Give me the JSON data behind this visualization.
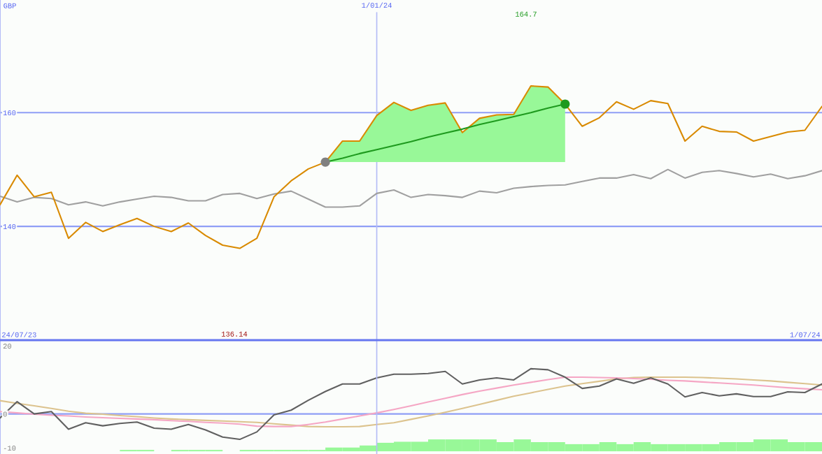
{
  "chart_data": [
    {
      "type": "line",
      "ylabel": "GBP",
      "categories": [
        null,
        null,
        null,
        null,
        null,
        null,
        null,
        null,
        null,
        null,
        null,
        null,
        null,
        null,
        null,
        null,
        null,
        null,
        null,
        null,
        null,
        null,
        "1/01/24",
        null,
        null,
        null,
        null,
        null,
        null,
        null,
        null,
        null,
        null,
        null,
        null,
        null,
        null,
        null,
        null,
        null,
        null,
        null,
        null,
        null,
        null,
        null,
        null,
        null,
        null
      ],
      "ylim": [
        120,
        179.8
      ],
      "yticks": [
        140,
        160
      ],
      "grid": "y",
      "ref_lines": [
        {
          "axis": "x",
          "value": "1/01/24",
          "color": "#b4bcf6"
        }
      ],
      "annotations": [
        "24/07/23",
        "1/07/24",
        "164.7",
        "136.14"
      ],
      "series": [
        {
          "color": "#a0a0a0",
          "values": [
            145.3,
            144.3,
            145.1,
            144.9,
            143.8,
            144.3,
            143.6,
            144.3,
            144.8,
            145.3,
            145.1,
            144.5,
            144.5,
            145.6,
            145.8,
            144.9,
            145.7,
            146.2,
            144.8,
            143.4,
            143.4,
            143.6,
            145.8,
            146.4,
            145.1,
            145.6,
            145.4,
            145.1,
            146.2,
            145.9,
            146.7,
            147.0,
            147.2,
            147.3,
            147.9,
            148.5,
            148.5,
            149.1,
            148.4,
            150.0,
            148.5,
            149.5,
            149.8,
            149.3,
            148.7,
            149.2,
            148.4,
            148.9,
            149.8
          ]
        },
        {
          "color": "#d98a00",
          "values": [
            143.8,
            149.0,
            145.2,
            146.0,
            137.9,
            140.7,
            139.1,
            140.3,
            141.4,
            140.0,
            139.1,
            140.6,
            138.4,
            136.7,
            136.14,
            137.9,
            145.2,
            148.0,
            150.1,
            151.3,
            155.0,
            155.0,
            159.5,
            161.8,
            160.4,
            161.3,
            161.7,
            156.5,
            159.0,
            159.6,
            159.7,
            164.7,
            164.5,
            161.5,
            157.6,
            159.1,
            161.9,
            160.6,
            162.1,
            161.6,
            155.0,
            157.6,
            156.7,
            156.6,
            155.0,
            155.8,
            156.6,
            156.9,
            161.1
          ]
        },
        {
          "type": "line",
          "color": "#1e9a1e",
          "values": [
            null,
            null,
            null,
            null,
            null,
            null,
            null,
            null,
            null,
            null,
            null,
            null,
            null,
            null,
            null,
            null,
            null,
            null,
            null,
            151.3,
            152.0,
            152.8,
            153.5,
            154.2,
            154.9,
            155.7,
            156.4,
            157.1,
            157.9,
            158.6,
            159.3,
            160.0,
            160.8,
            161.5,
            null,
            null,
            null,
            null,
            null,
            null,
            null,
            null,
            null,
            null,
            null,
            null,
            null,
            null,
            null
          ],
          "lower": [
            null,
            null,
            null,
            null,
            null,
            null,
            null,
            null,
            null,
            null,
            null,
            null,
            null,
            null,
            null,
            null,
            null,
            null,
            null,
            151.3,
            151.3,
            151.3,
            151.3,
            151.3,
            151.3,
            151.3,
            151.3,
            151.3,
            151.3,
            151.3,
            151.3,
            151.3,
            151.3,
            151.3,
            null,
            null,
            null,
            null,
            null,
            null,
            null,
            null,
            null,
            null,
            null,
            null,
            null,
            null,
            null
          ],
          "upper": [
            null,
            null,
            null,
            null,
            null,
            null,
            null,
            null,
            null,
            null,
            null,
            null,
            null,
            null,
            null,
            null,
            null,
            null,
            null,
            151.3,
            155.0,
            155.0,
            159.5,
            161.8,
            160.4,
            161.3,
            161.7,
            156.5,
            159.0,
            159.6,
            159.7,
            164.7,
            164.5,
            161.5,
            null,
            null,
            null,
            null,
            null,
            null,
            null,
            null,
            null,
            null,
            null,
            null,
            null,
            null,
            null
          ]
        },
        {
          "type": "scatter",
          "values": [
            null,
            null,
            null,
            null,
            null,
            null,
            null,
            null,
            null,
            null,
            null,
            null,
            null,
            null,
            null,
            null,
            null,
            null,
            null,
            151.3,
            null,
            null,
            null,
            null,
            null,
            null,
            null,
            null,
            null,
            null,
            null,
            null,
            null,
            161.5,
            null,
            null,
            null,
            null,
            null,
            null,
            null,
            null,
            null,
            null,
            null,
            null,
            null,
            null,
            null
          ],
          "colors": [
            null,
            null,
            null,
            null,
            null,
            null,
            null,
            null,
            null,
            null,
            null,
            null,
            null,
            null,
            null,
            null,
            null,
            null,
            null,
            "#808080",
            null,
            null,
            null,
            null,
            null,
            null,
            null,
            null,
            null,
            null,
            null,
            null,
            null,
            "#1e9a1e",
            null,
            null,
            null,
            null,
            null,
            null,
            null,
            null,
            null,
            null,
            null,
            null,
            null,
            null,
            null
          ]
        }
      ]
    },
    {
      "type": "line",
      "categories": [
        null,
        null,
        null,
        null,
        null,
        null,
        null,
        null,
        null,
        null,
        null,
        null,
        null,
        null,
        null,
        null,
        null,
        null,
        null,
        null,
        null,
        null,
        null,
        null,
        null,
        null,
        null,
        null,
        null,
        null,
        null,
        null,
        null,
        null,
        null,
        null,
        null,
        null,
        null,
        null,
        null,
        null,
        null,
        null,
        null,
        null,
        null,
        null,
        null
      ],
      "ylim": [
        -11.8,
        21.5
      ],
      "yticks": [
        20,
        0,
        -10
      ],
      "ref_lines": [
        {
          "axis": "y",
          "value": 0,
          "color": "#8f9ef6"
        }
      ],
      "series": [
        {
          "type": "bar",
          "color": "#98f898",
          "values": [
            null,
            null,
            null,
            null,
            null,
            null,
            null,
            0.4,
            0.4,
            null,
            0.4,
            0.4,
            0.4,
            null,
            0.4,
            0.4,
            0.4,
            0.4,
            0.4,
            1.1,
            1.1,
            1.7,
            2.5,
            2.8,
            2.8,
            3.5,
            3.5,
            3.5,
            3.5,
            2.7,
            3.5,
            2.7,
            2.7,
            2.1,
            2.1,
            2.7,
            2.1,
            2.7,
            2.1,
            2.1,
            2.1,
            2.1,
            2.7,
            2.7,
            3.5,
            3.5,
            2.7,
            2.7,
            null
          ],
          "base": [
            null,
            null,
            null,
            null,
            null,
            null,
            null,
            -11.0,
            -11.0,
            null,
            -11.0,
            -11.0,
            -11.0,
            null,
            -11.0,
            -11.0,
            -11.0,
            -11.0,
            -11.0,
            -11.0,
            -11.0,
            -11.0,
            -11.0,
            -11.0,
            -11.0,
            -11.0,
            -11.0,
            -11.0,
            -11.0,
            -11.0,
            -11.0,
            -11.0,
            -11.0,
            -11.0,
            -11.0,
            -11.0,
            -11.0,
            -11.0,
            -11.0,
            -11.0,
            -11.0,
            -11.0,
            -11.0,
            -11.0,
            -11.0,
            -11.0,
            -11.0,
            -11.0,
            null
          ]
        },
        {
          "color": "#dcc38e",
          "values": [
            3.9,
            3.1,
            2.4,
            1.6,
            0.8,
            0.2,
            -0.1,
            -0.5,
            -0.8,
            -1.2,
            -1.5,
            -1.7,
            -1.9,
            -2.1,
            -2.3,
            -2.5,
            -2.9,
            -3.3,
            -3.7,
            -3.8,
            -3.8,
            -3.7,
            -3.1,
            -2.6,
            -1.6,
            -0.6,
            0.5,
            1.6,
            2.8,
            4.0,
            5.2,
            6.2,
            7.2,
            8.2,
            8.9,
            9.6,
            10.3,
            10.7,
            10.8,
            10.8,
            10.8,
            10.7,
            10.5,
            10.3,
            10.0,
            9.7,
            9.3,
            8.9,
            8.5
          ]
        },
        {
          "color": "#f5a6c4",
          "values": [
            0.7,
            0.3,
            -0.1,
            -0.4,
            -0.6,
            -0.9,
            -1.1,
            -1.3,
            -1.5,
            -1.7,
            -2.0,
            -2.2,
            -2.5,
            -2.7,
            -3.0,
            -3.6,
            -3.7,
            -3.7,
            -3.1,
            -2.4,
            -1.5,
            -0.6,
            0.3,
            1.3,
            2.4,
            3.5,
            4.6,
            5.7,
            6.7,
            7.6,
            8.5,
            9.3,
            10.1,
            10.8,
            10.8,
            10.7,
            10.6,
            10.4,
            10.2,
            9.9,
            9.7,
            9.4,
            9.1,
            8.8,
            8.5,
            8.1,
            7.7,
            7.4,
            7.1
          ]
        },
        {
          "color": "#606060",
          "values": [
            -1.2,
            3.6,
            0.0,
            0.7,
            -4.5,
            -2.6,
            -3.5,
            -2.8,
            -2.4,
            -4.2,
            -4.5,
            -3.1,
            -4.7,
            -6.8,
            -7.5,
            -5.3,
            -0.3,
            1.1,
            4.0,
            6.6,
            8.8,
            8.8,
            10.6,
            11.7,
            11.7,
            11.9,
            12.5,
            8.8,
            10.0,
            10.6,
            10.0,
            13.3,
            13.0,
            10.8,
            7.5,
            8.2,
            10.3,
            9.0,
            10.6,
            8.8,
            5.0,
            6.3,
            5.3,
            5.9,
            5.1,
            5.1,
            6.5,
            6.3,
            8.8
          ]
        }
      ]
    }
  ]
}
